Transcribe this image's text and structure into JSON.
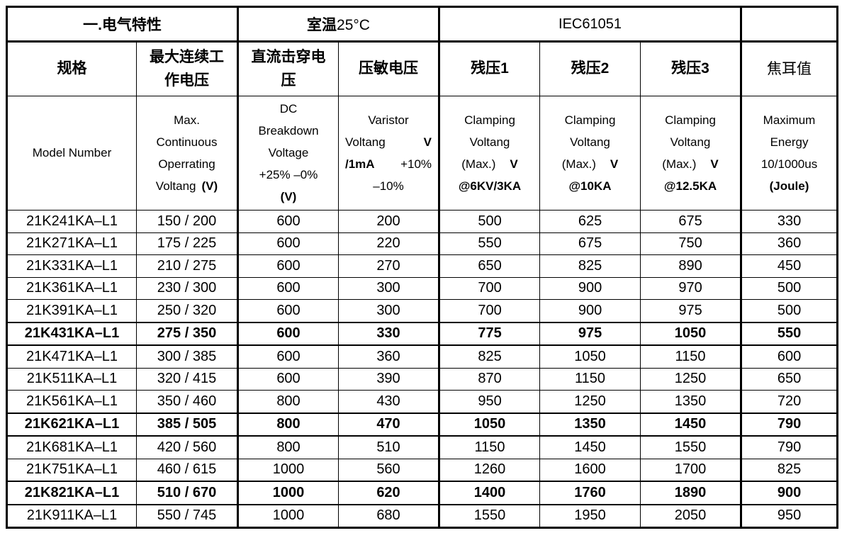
{
  "colors": {
    "background": "#ffffff",
    "border": "#000000",
    "text": "#000000"
  },
  "top_header": {
    "section1": "一.电气特性",
    "room_temp_cn": "室温",
    "room_temp_val": "25°C",
    "standard": "IEC61051",
    "blank": ""
  },
  "columns": [
    {
      "key": "model",
      "cn": "规格",
      "en_lines": [
        {
          "segs": [
            {
              "t": "Model Number"
            }
          ]
        }
      ]
    },
    {
      "key": "max-continuous-operating-voltage",
      "cn": "最大连续工作电压",
      "en_lines": [
        {
          "segs": [
            {
              "t": "Max."
            }
          ]
        },
        {
          "segs": [
            {
              "t": "Continuous"
            }
          ]
        },
        {
          "segs": [
            {
              "t": "Operrating"
            }
          ]
        },
        {
          "segs": [
            {
              "t": "Voltang"
            },
            {
              "t": "(V)",
              "b": true
            }
          ]
        }
      ]
    },
    {
      "key": "dc-breakdown-voltage",
      "cn": "直流击穿电压",
      "en_lines": [
        {
          "segs": [
            {
              "t": "DC"
            }
          ]
        },
        {
          "segs": [
            {
              "t": "Breakdown"
            }
          ]
        },
        {
          "segs": [
            {
              "t": "Voltage"
            }
          ]
        },
        {
          "segs": [
            {
              "t": "+25% –0%"
            }
          ]
        },
        {
          "segs": [
            {
              "t": "(V)",
              "b": true
            }
          ]
        }
      ]
    },
    {
      "key": "varistor-voltage",
      "cn": "压敏电压",
      "en_lines": [
        {
          "segs": [
            {
              "t": "Varistor"
            }
          ]
        },
        {
          "cls": "justify",
          "segs": [
            {
              "t": "Voltang"
            },
            {
              "t": "V",
              "b": true
            }
          ]
        },
        {
          "cls": "justify",
          "segs": [
            {
              "t": "/1mA",
              "b": true
            },
            {
              "t": "+10%"
            }
          ]
        },
        {
          "segs": [
            {
              "t": "–10%"
            }
          ]
        }
      ]
    },
    {
      "key": "clamping-voltage-1",
      "cn": "残压1",
      "en_lines": [
        {
          "segs": [
            {
              "t": "Clamping"
            }
          ]
        },
        {
          "segs": [
            {
              "t": "Voltang"
            }
          ]
        },
        {
          "cls": "widegap",
          "segs": [
            {
              "t": "(Max.)"
            },
            {
              "t": "V",
              "b": true
            }
          ]
        },
        {
          "segs": [
            {
              "t": "@6KV/3KA",
              "b": true
            }
          ]
        }
      ]
    },
    {
      "key": "clamping-voltage-2",
      "cn": "残压2",
      "en_lines": [
        {
          "segs": [
            {
              "t": "Clamping"
            }
          ]
        },
        {
          "segs": [
            {
              "t": "Voltang"
            }
          ]
        },
        {
          "cls": "widegap",
          "segs": [
            {
              "t": "(Max.)"
            },
            {
              "t": "V",
              "b": true
            }
          ]
        },
        {
          "segs": [
            {
              "t": "@10KA",
              "b": true
            }
          ]
        }
      ]
    },
    {
      "key": "clamping-voltage-3",
      "cn": "残压3",
      "en_lines": [
        {
          "segs": [
            {
              "t": "Clamping"
            }
          ]
        },
        {
          "segs": [
            {
              "t": "Voltang"
            }
          ]
        },
        {
          "cls": "widegap",
          "segs": [
            {
              "t": "(Max.)"
            },
            {
              "t": "V",
              "b": true
            }
          ]
        },
        {
          "segs": [
            {
              "t": "@12.5KA",
              "b": true
            }
          ]
        }
      ]
    },
    {
      "key": "maximum-energy",
      "cn": "焦耳值",
      "en_lines": [
        {
          "segs": [
            {
              "t": "Maximum"
            }
          ]
        },
        {
          "segs": [
            {
              "t": "Energy"
            }
          ]
        },
        {
          "segs": [
            {
              "t": "10/1000us"
            }
          ]
        },
        {
          "segs": [
            {
              "t": "(Joule)",
              "b": true
            }
          ]
        }
      ]
    }
  ],
  "rows": [
    {
      "bold": false,
      "cells": [
        "21K241KA–L1",
        "150 / 200",
        "600",
        "200",
        "500",
        "625",
        "675",
        "330"
      ]
    },
    {
      "bold": false,
      "cells": [
        "21K271KA–L1",
        "175 / 225",
        "600",
        "220",
        "550",
        "675",
        "750",
        "360"
      ]
    },
    {
      "bold": false,
      "cells": [
        "21K331KA–L1",
        "210 / 275",
        "600",
        "270",
        "650",
        "825",
        "890",
        "450"
      ]
    },
    {
      "bold": false,
      "cells": [
        "21K361KA–L1",
        "230 / 300",
        "600",
        "300",
        "700",
        "900",
        "970",
        "500"
      ]
    },
    {
      "bold": false,
      "cells": [
        "21K391KA–L1",
        "250 / 320",
        "600",
        "300",
        "700",
        "900",
        "975",
        "500"
      ]
    },
    {
      "bold": true,
      "cells": [
        "21K431KA–L1",
        "275 / 350",
        "600",
        "330",
        "775",
        "975",
        "1050",
        "550"
      ]
    },
    {
      "bold": false,
      "cells": [
        "21K471KA–L1",
        "300 / 385",
        "600",
        "360",
        "825",
        "1050",
        "1150",
        "600"
      ]
    },
    {
      "bold": false,
      "cells": [
        "21K511KA–L1",
        "320 / 415",
        "600",
        "390",
        "870",
        "1150",
        "1250",
        "650"
      ]
    },
    {
      "bold": false,
      "cells": [
        "21K561KA–L1",
        "350 / 460",
        "800",
        "430",
        "950",
        "1250",
        "1350",
        "720"
      ]
    },
    {
      "bold": true,
      "cells": [
        "21K621KA–L1",
        "385 / 505",
        "800",
        "470",
        "1050",
        "1350",
        "1450",
        "790"
      ]
    },
    {
      "bold": false,
      "cells": [
        "21K681KA–L1",
        "420 / 560",
        "800",
        "510",
        "1150",
        "1450",
        "1550",
        "790"
      ]
    },
    {
      "bold": false,
      "cells": [
        "21K751KA–L1",
        "460 / 615",
        "1000",
        "560",
        "1260",
        "1600",
        "1700",
        "825"
      ]
    },
    {
      "bold": true,
      "cells": [
        "21K821KA–L1",
        "510 / 670",
        "1000",
        "620",
        "1400",
        "1760",
        "1890",
        "900"
      ]
    },
    {
      "bold": false,
      "cells": [
        "21K911KA–L1",
        "550 / 745",
        "1000",
        "680",
        "1550",
        "1950",
        "2050",
        "950"
      ]
    }
  ]
}
